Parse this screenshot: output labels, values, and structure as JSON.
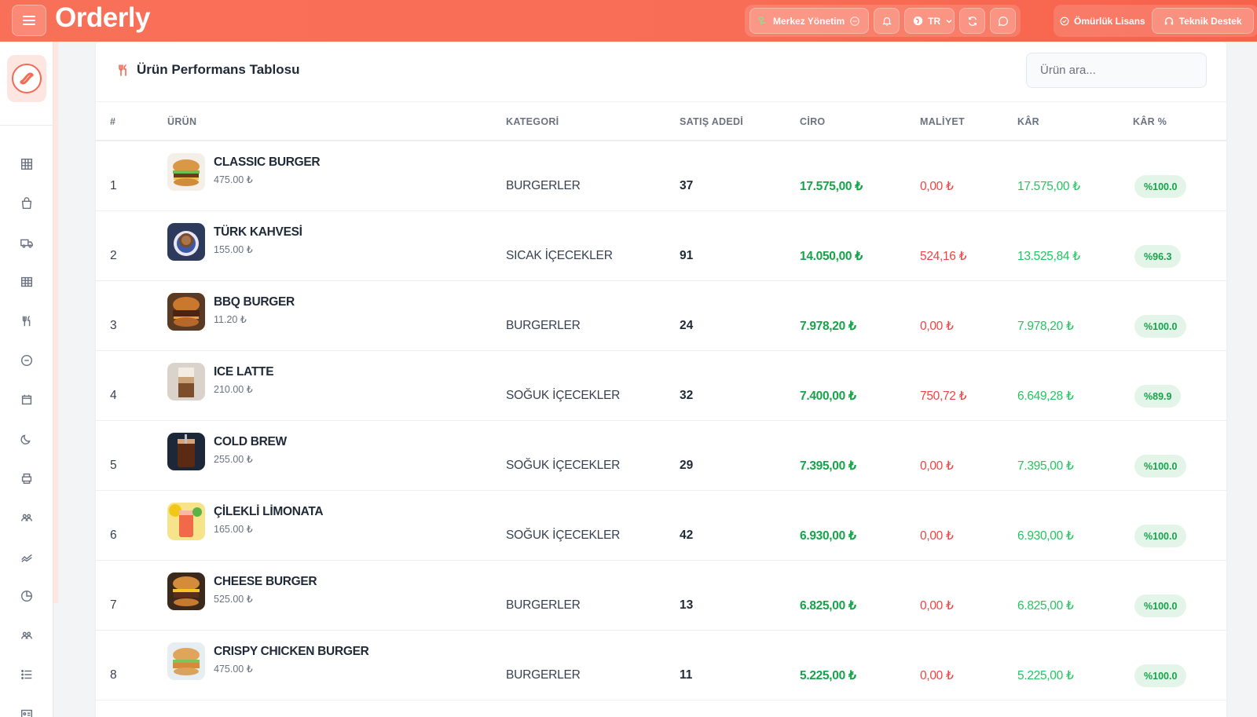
{
  "header": {
    "brand": "Orderly",
    "branch_label": "Merkez Yönetim",
    "language": "TR",
    "license_label": "Ömürlük Lisans",
    "support_label": "Teknik Destek"
  },
  "colors": {
    "accent": "#f86d55",
    "positive": "#16a34a",
    "negative": "#ef4444"
  },
  "sidebar": {
    "items": [
      {
        "icon": "grid-icon"
      },
      {
        "icon": "shopping-bag-icon"
      },
      {
        "icon": "delivery-truck-icon"
      },
      {
        "icon": "table-icon"
      },
      {
        "icon": "utensils-icon"
      },
      {
        "icon": "minus-circle-icon"
      },
      {
        "icon": "calendar-icon"
      },
      {
        "icon": "moon-icon"
      },
      {
        "icon": "printer-icon"
      },
      {
        "icon": "users-icon"
      },
      {
        "icon": "chart-line-icon"
      },
      {
        "icon": "pie-chart-icon"
      },
      {
        "icon": "team-icon"
      },
      {
        "icon": "list-icon"
      },
      {
        "icon": "id-card-icon"
      }
    ]
  },
  "card": {
    "title": "Ürün Performans Tablosu",
    "search_placeholder": "Ürün ara..."
  },
  "table": {
    "columns": [
      "#",
      "ÜRÜN",
      "KATEGORİ",
      "SATIŞ ADEDİ",
      "CİRO",
      "MALİYET",
      "KÂR",
      "KÂR %"
    ],
    "rows": [
      {
        "num": "1",
        "name": "CLASSIC BURGER",
        "price": "475.00 ₺",
        "category": "BURGERLER",
        "qty": "37",
        "revenue": "17.575,00 ₺",
        "cost": "0,00 ₺",
        "profit": "17.575,00 ₺",
        "margin": "%100.0",
        "thumb": "burger"
      },
      {
        "num": "2",
        "name": "TÜRK KAHVESİ",
        "price": "155.00 ₺",
        "category": "SICAK İÇECEKLER",
        "qty": "91",
        "revenue": "14.050,00 ₺",
        "cost": "524,16 ₺",
        "profit": "13.525,84 ₺",
        "margin": "%96.3",
        "thumb": "coffee"
      },
      {
        "num": "3",
        "name": "BBQ BURGER",
        "price": "11.20 ₺",
        "category": "BURGERLER",
        "qty": "24",
        "revenue": "7.978,20 ₺",
        "cost": "0,00 ₺",
        "profit": "7.978,20 ₺",
        "margin": "%100.0",
        "thumb": "bbq"
      },
      {
        "num": "4",
        "name": "ICE LATTE",
        "price": "210.00 ₺",
        "category": "SOĞUK İÇECEKLER",
        "qty": "32",
        "revenue": "7.400,00 ₺",
        "cost": "750,72 ₺",
        "profit": "6.649,28 ₺",
        "margin": "%89.9",
        "thumb": "latte"
      },
      {
        "num": "5",
        "name": "COLD BREW",
        "price": "255.00 ₺",
        "category": "SOĞUK İÇECEKLER",
        "qty": "29",
        "revenue": "7.395,00 ₺",
        "cost": "0,00 ₺",
        "profit": "7.395,00 ₺",
        "margin": "%100.0",
        "thumb": "coldbrew"
      },
      {
        "num": "6",
        "name": "ÇİLEKLİ LİMONATA",
        "price": "165.00 ₺",
        "category": "SOĞUK İÇECEKLER",
        "qty": "42",
        "revenue": "6.930,00 ₺",
        "cost": "0,00 ₺",
        "profit": "6.930,00 ₺",
        "margin": "%100.0",
        "thumb": "lemonade"
      },
      {
        "num": "7",
        "name": "CHEESE BURGER",
        "price": "525.00 ₺",
        "category": "BURGERLER",
        "qty": "13",
        "revenue": "6.825,00 ₺",
        "cost": "0,00 ₺",
        "profit": "6.825,00 ₺",
        "margin": "%100.0",
        "thumb": "cheese"
      },
      {
        "num": "8",
        "name": "CRISPY CHICKEN BURGER",
        "price": "475.00 ₺",
        "category": "BURGERLER",
        "qty": "11",
        "revenue": "5.225,00 ₺",
        "cost": "0,00 ₺",
        "profit": "5.225,00 ₺",
        "margin": "%100.0",
        "thumb": "chicken"
      }
    ]
  }
}
